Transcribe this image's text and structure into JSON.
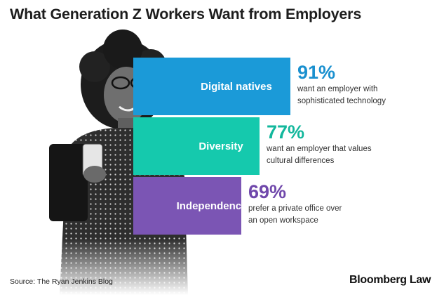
{
  "title": "What Generation Z Workers Want from Employers",
  "chart_data": {
    "type": "bar",
    "title": "What Generation Z Workers Want from Employers",
    "categories": [
      "Digital natives",
      "Diversity",
      "Independence"
    ],
    "values": [
      91,
      77,
      69
    ],
    "value_labels": [
      "91%",
      "77%",
      "69%"
    ],
    "descriptions": [
      [
        "want an employer with",
        "sophisticated technology"
      ],
      [
        "want an employer that values",
        "cultural differences"
      ],
      [
        "prefer a private office over",
        "an open workspace"
      ]
    ],
    "colors": [
      "#1b9ad8",
      "#15c9ad",
      "#7b55b4"
    ],
    "value_colors": [
      "#1a90cf",
      "#12b79c",
      "#7048ab"
    ],
    "xlim": [
      0,
      100
    ]
  },
  "source": "Source:  The Ryan Jenkins Blog",
  "logo": "Bloomberg Law",
  "illustration": "woman-holding-laptop-photo"
}
